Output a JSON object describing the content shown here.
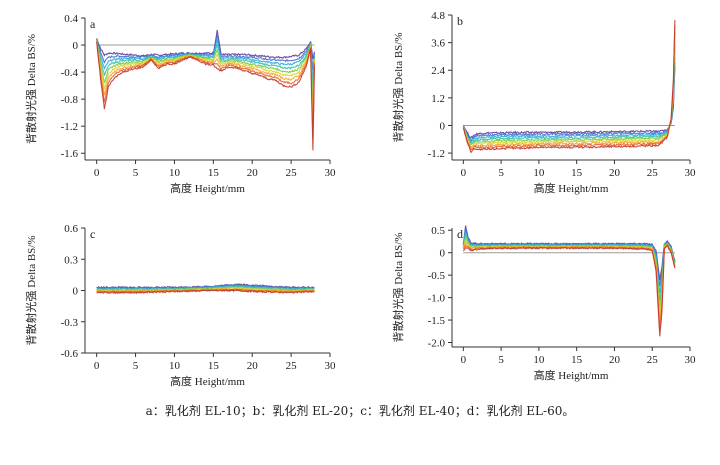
{
  "caption": "a：乳化剂 EL-10；b：乳化剂 EL-20；c：乳化剂 EL-40；d：乳化剂 EL-60。",
  "colors": [
    "#5e3c99",
    "#3f6fd0",
    "#2fa7e0",
    "#35c2a6",
    "#7ac943",
    "#d8d52a",
    "#f4a52a",
    "#e8612c",
    "#c0392b"
  ],
  "chart_data": [
    {
      "type": "line",
      "panel_label": "a",
      "xlabel": "高度 Height/mm",
      "ylabel": "背散射光强 Delta BS/%",
      "xlim": [
        -1.5,
        30
      ],
      "ylim": [
        -1.7,
        0.4
      ],
      "xticks": [
        "0",
        "5",
        "10",
        "15",
        "20",
        "25",
        "30"
      ],
      "yticks": [
        "0.4",
        "0",
        "-0.4",
        "-0.8",
        "-1.2",
        "-1.6"
      ],
      "ytick_values": [
        0.4,
        0,
        -0.4,
        -0.8,
        -1.2,
        -1.6
      ],
      "series_count": 9,
      "x": [
        0,
        0.5,
        1,
        1.5,
        2,
        3,
        4,
        5,
        6,
        7,
        8,
        9,
        10,
        11,
        12,
        13,
        14,
        15,
        15.5,
        16,
        17,
        18,
        19,
        20,
        21,
        22,
        23,
        24,
        25,
        26,
        27,
        27.5,
        27.8,
        28
      ],
      "envelope_low": [
        0.05,
        -0.5,
        -0.95,
        -0.62,
        -0.52,
        -0.42,
        -0.38,
        -0.35,
        -0.32,
        -0.22,
        -0.35,
        -0.28,
        -0.28,
        -0.22,
        -0.18,
        -0.22,
        -0.28,
        -0.3,
        -0.35,
        -0.38,
        -0.32,
        -0.34,
        -0.38,
        -0.42,
        -0.45,
        -0.5,
        -0.52,
        -0.6,
        -0.62,
        -0.55,
        -0.3,
        -0.05,
        -1.55,
        -0.3
      ],
      "envelope_high": [
        0.1,
        -0.05,
        -0.15,
        -0.12,
        -0.12,
        -0.13,
        -0.14,
        -0.15,
        -0.16,
        -0.14,
        -0.15,
        -0.14,
        -0.13,
        -0.12,
        -0.12,
        -0.12,
        -0.12,
        -0.12,
        0.22,
        -0.14,
        -0.14,
        -0.14,
        -0.14,
        -0.15,
        -0.16,
        -0.17,
        -0.18,
        -0.18,
        -0.17,
        -0.15,
        -0.05,
        0.05,
        -0.2,
        -0.1
      ]
    },
    {
      "type": "line",
      "panel_label": "b",
      "xlabel": "高度 Height/mm",
      "ylabel": "背散射光强 Delta BS/%",
      "xlim": [
        -1.5,
        30
      ],
      "ylim": [
        -1.5,
        4.8
      ],
      "xticks": [
        "0",
        "5",
        "10",
        "15",
        "20",
        "25",
        "30"
      ],
      "yticks": [
        "4.8",
        "3.6",
        "2.4",
        "1.2",
        "0",
        "-1.2"
      ],
      "ytick_values": [
        4.8,
        3.6,
        2.4,
        1.2,
        0,
        -1.2
      ],
      "series_count": 9,
      "x": [
        0,
        0.5,
        1,
        1.5,
        2,
        3,
        5,
        8,
        10,
        12,
        15,
        18,
        20,
        22,
        25,
        26,
        27,
        27.5,
        27.8,
        28
      ],
      "envelope_low": [
        -0.1,
        -0.7,
        -1.15,
        -1.0,
        -1.05,
        -1.05,
        -1.0,
        -0.98,
        -0.95,
        -0.95,
        -0.95,
        -0.93,
        -0.92,
        -0.9,
        -0.88,
        -0.85,
        -0.5,
        0.3,
        2.0,
        4.6
      ],
      "envelope_high": [
        0,
        -0.3,
        -0.55,
        -0.4,
        -0.35,
        -0.33,
        -0.32,
        -0.3,
        -0.3,
        -0.3,
        -0.28,
        -0.28,
        -0.27,
        -0.26,
        -0.25,
        -0.25,
        -0.2,
        0.1,
        0.8,
        2.5
      ]
    },
    {
      "type": "line",
      "panel_label": "c",
      "xlabel": "高度 Height/mm",
      "ylabel": "背散射光强 Delta BS/%",
      "xlim": [
        -1.5,
        30
      ],
      "ylim": [
        -0.6,
        0.6
      ],
      "xticks": [
        "0",
        "5",
        "10",
        "15",
        "20",
        "25",
        "30"
      ],
      "yticks": [
        "0.6",
        "0.3",
        "0",
        "-0.3",
        "-0.6"
      ],
      "ytick_values": [
        0.6,
        0.3,
        0,
        -0.3,
        -0.6
      ],
      "series_count": 9,
      "x": [
        0,
        5,
        10,
        15,
        18,
        20,
        25,
        28
      ],
      "envelope_low": [
        -0.02,
        -0.02,
        -0.01,
        0,
        0,
        -0.01,
        -0.02,
        -0.01
      ],
      "envelope_high": [
        0.03,
        0.03,
        0.03,
        0.04,
        0.06,
        0.05,
        0.03,
        0.03
      ]
    },
    {
      "type": "line",
      "panel_label": "d",
      "xlabel": "高度 Height/mm",
      "ylabel": "背散射光强 Delta BS/%",
      "xlim": [
        -1.5,
        30
      ],
      "ylim": [
        -2.1,
        0.55
      ],
      "xticks": [
        "0",
        "5",
        "10",
        "15",
        "20",
        "25",
        "30"
      ],
      "yticks": [
        "0.5",
        "0",
        "-0.5",
        "-1.0",
        "-1.5",
        "-2.0"
      ],
      "ytick_values": [
        0.5,
        0,
        -0.5,
        -1.0,
        -1.5,
        -2.0
      ],
      "series_count": 9,
      "x": [
        0,
        0.3,
        0.6,
        1,
        2,
        5,
        10,
        15,
        20,
        24,
        25,
        25.5,
        26,
        26.3,
        26.6,
        27,
        27.5,
        28
      ],
      "envelope_low": [
        0.05,
        0.1,
        0.1,
        0.05,
        0.08,
        0.1,
        0.1,
        0.1,
        0.1,
        0.08,
        0.05,
        -0.4,
        -1.85,
        -1.3,
        0.1,
        0.15,
        0,
        -0.35
      ],
      "envelope_high": [
        0.2,
        0.6,
        0.35,
        0.22,
        0.2,
        0.2,
        0.2,
        0.2,
        0.2,
        0.2,
        0.18,
        0.05,
        -0.6,
        -0.3,
        0.2,
        0.25,
        0.15,
        -0.2
      ]
    }
  ]
}
